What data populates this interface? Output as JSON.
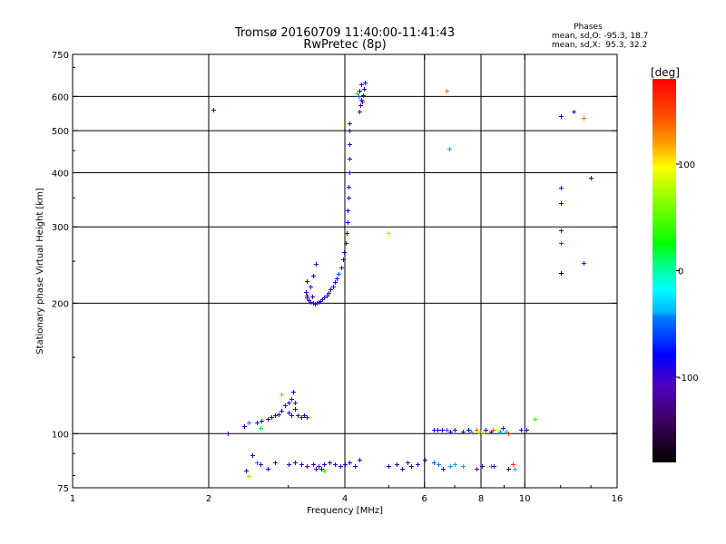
{
  "chart_data": {
    "type": "scatter",
    "title": "Tromsø 20160709 11:40:00-11:41:43",
    "subtitle": "RwPretec (8p)",
    "xlabel": "Frequency [MHz]",
    "ylabel": "Stationary phase Virtual Height [km]",
    "xscale": "log",
    "yscale": "log",
    "xlim": [
      1,
      16
    ],
    "ylim": [
      75,
      750
    ],
    "x_ticks": [
      1,
      2,
      4,
      6,
      8,
      10,
      16
    ],
    "x_tick_labels": [
      "1",
      "2",
      "4",
      "6",
      "8",
      "10",
      "16"
    ],
    "y_ticks": [
      75,
      100,
      200,
      300,
      400,
      500,
      600,
      750
    ],
    "y_tick_labels": [
      "75",
      "100",
      "200",
      "300",
      "400",
      "500",
      "600",
      "750"
    ],
    "x_grid": [
      2,
      4,
      6,
      8,
      10
    ],
    "y_grid": [
      100,
      200,
      300,
      400,
      500,
      600
    ],
    "stats": {
      "heading": "Phases",
      "o_line": "mean, sd,O: -95.3, 18.7",
      "x_line": "mean, sd,X:  95.3, 32.2"
    },
    "colorbar": {
      "label": "[deg]",
      "range": [
        -180,
        180
      ],
      "ticks": [
        100,
        0,
        -100
      ],
      "tick_labels": [
        "100",
        "0",
        "-100"
      ]
    },
    "point_fields": [
      "frequency_mhz",
      "height_km",
      "phase_deg"
    ],
    "points": [
      [
        2.05,
        560,
        -110
      ],
      [
        2.2,
        100,
        -120
      ],
      [
        3.28,
        212,
        -110
      ],
      [
        3.3,
        206,
        -110
      ],
      [
        3.33,
        203,
        -100
      ],
      [
        3.36,
        201,
        -120
      ],
      [
        3.4,
        200,
        -110
      ],
      [
        3.43,
        199,
        -110
      ],
      [
        3.46,
        200,
        -130
      ],
      [
        3.5,
        201,
        -110
      ],
      [
        3.53,
        202,
        -100
      ],
      [
        3.57,
        204,
        -110
      ],
      [
        3.6,
        206,
        -110
      ],
      [
        3.64,
        208,
        -110
      ],
      [
        3.68,
        211,
        -110
      ],
      [
        3.72,
        215,
        -100
      ],
      [
        3.76,
        219,
        -110
      ],
      [
        3.8,
        224,
        -110
      ],
      [
        3.84,
        228,
        -110
      ],
      [
        3.88,
        234,
        -80
      ],
      [
        3.92,
        242,
        -110
      ],
      [
        3.96,
        252,
        -110
      ],
      [
        3.99,
        262,
        -110
      ],
      [
        4.01,
        275,
        -110
      ],
      [
        4.03,
        290,
        -100
      ],
      [
        4.05,
        308,
        -110
      ],
      [
        4.06,
        328,
        -110
      ],
      [
        4.07,
        350,
        -110
      ],
      [
        4.08,
        372,
        -110
      ],
      [
        4.09,
        400,
        -110
      ],
      [
        4.09,
        430,
        -110
      ],
      [
        4.1,
        465,
        -110
      ],
      [
        4.1,
        500,
        -120
      ],
      [
        4.1,
        520,
        -110
      ],
      [
        3.3,
        225,
        -110
      ],
      [
        3.35,
        218,
        -120
      ],
      [
        3.4,
        232,
        -100
      ],
      [
        3.45,
        246,
        -110
      ],
      [
        3.3,
        208,
        -130
      ],
      [
        3.38,
        207,
        -110
      ],
      [
        4.3,
        555,
        -110
      ],
      [
        4.32,
        572,
        -120
      ],
      [
        4.35,
        590,
        -110
      ],
      [
        4.28,
        600,
        -80
      ],
      [
        4.38,
        605,
        -110
      ],
      [
        4.3,
        618,
        -110
      ],
      [
        4.4,
        625,
        -100
      ],
      [
        4.34,
        640,
        -110
      ],
      [
        4.42,
        645,
        -110
      ],
      [
        4.36,
        585,
        -130
      ],
      [
        4.25,
        610,
        20
      ],
      [
        2.4,
        104,
        -110
      ],
      [
        2.45,
        106,
        -70
      ],
      [
        2.55,
        106,
        -110
      ],
      [
        2.62,
        107,
        -110
      ],
      [
        2.7,
        108,
        -110
      ],
      [
        2.75,
        109,
        -110
      ],
      [
        2.8,
        110,
        -110
      ],
      [
        2.85,
        111,
        -110
      ],
      [
        2.9,
        113,
        -110
      ],
      [
        2.95,
        116,
        -130
      ],
      [
        3.0,
        118,
        -110
      ],
      [
        3.05,
        120,
        -110
      ],
      [
        3.0,
        112,
        -110
      ],
      [
        3.05,
        110,
        -110
      ],
      [
        3.1,
        114,
        -130
      ],
      [
        3.15,
        110,
        -110
      ],
      [
        3.2,
        109,
        -110
      ],
      [
        3.25,
        110,
        -110
      ],
      [
        3.3,
        109,
        -130
      ],
      [
        2.9,
        123,
        120
      ],
      [
        3.08,
        125,
        -100
      ],
      [
        3.1,
        118,
        -110
      ],
      [
        2.6,
        103,
        30
      ],
      [
        2.42,
        82,
        -110
      ],
      [
        2.45,
        80,
        60
      ],
      [
        2.5,
        89,
        -110
      ],
      [
        2.55,
        86,
        -70
      ],
      [
        2.6,
        85,
        -110
      ],
      [
        2.7,
        83,
        -100
      ],
      [
        2.8,
        86,
        -130
      ],
      [
        3.0,
        85,
        -110
      ],
      [
        3.1,
        86,
        -110
      ],
      [
        3.2,
        85,
        -110
      ],
      [
        3.3,
        84,
        -120
      ],
      [
        3.4,
        85,
        -110
      ],
      [
        3.5,
        84,
        -110
      ],
      [
        3.55,
        83,
        -110
      ],
      [
        3.6,
        85,
        -110
      ],
      [
        3.7,
        86,
        -110
      ],
      [
        3.8,
        85,
        -110
      ],
      [
        3.9,
        84,
        -110
      ],
      [
        4.0,
        85,
        -100
      ],
      [
        4.1,
        86,
        -110
      ],
      [
        4.2,
        84,
        -110
      ],
      [
        4.3,
        87,
        -110
      ],
      [
        3.6,
        82,
        40
      ],
      [
        3.45,
        83,
        -130
      ],
      [
        5.0,
        84,
        -110
      ],
      [
        5.2,
        85,
        -130
      ],
      [
        5.35,
        83,
        -110
      ],
      [
        5.5,
        86,
        -120
      ],
      [
        5.6,
        84,
        -140
      ],
      [
        5.8,
        85,
        -110
      ],
      [
        6.0,
        87,
        -130
      ],
      [
        6.3,
        86,
        -80
      ],
      [
        6.45,
        85,
        -70
      ],
      [
        6.6,
        83,
        -110
      ],
      [
        6.85,
        84,
        -60
      ],
      [
        7.0,
        85,
        -60
      ],
      [
        7.3,
        84,
        -60
      ],
      [
        7.8,
        83,
        -130
      ],
      [
        8.05,
        84,
        -110
      ],
      [
        8.4,
        84,
        160
      ],
      [
        8.55,
        84,
        -110
      ],
      [
        9.2,
        83,
        -140
      ],
      [
        9.5,
        83,
        -60
      ],
      [
        9.4,
        85,
        160
      ],
      [
        6.3,
        102,
        -110
      ],
      [
        6.4,
        102,
        -100
      ],
      [
        6.55,
        102,
        -110
      ],
      [
        6.7,
        102,
        -80
      ],
      [
        6.85,
        101,
        -110
      ],
      [
        7.0,
        102,
        -110
      ],
      [
        7.3,
        101,
        -110
      ],
      [
        7.5,
        102,
        -100
      ],
      [
        7.6,
        101,
        -60
      ],
      [
        7.8,
        102,
        150
      ],
      [
        7.9,
        101,
        80
      ],
      [
        8.0,
        101,
        60
      ],
      [
        8.1,
        101,
        100
      ],
      [
        8.2,
        102,
        -110
      ],
      [
        8.4,
        101,
        -110
      ],
      [
        8.5,
        102,
        160
      ],
      [
        8.7,
        102,
        100
      ],
      [
        8.8,
        101,
        -60
      ],
      [
        8.95,
        103,
        -110
      ],
      [
        9.1,
        101,
        -60
      ],
      [
        9.2,
        100,
        160
      ],
      [
        9.8,
        102,
        -130
      ],
      [
        10.1,
        102,
        -110
      ],
      [
        10.5,
        108,
        40
      ],
      [
        5.0,
        290,
        110
      ],
      [
        6.7,
        620,
        140
      ],
      [
        6.8,
        455,
        -60
      ],
      [
        12.0,
        540,
        -110
      ],
      [
        12.8,
        555,
        -110
      ],
      [
        13.5,
        535,
        140
      ],
      [
        14.0,
        390,
        -110
      ],
      [
        12.0,
        370,
        -110
      ],
      [
        12.0,
        340,
        -110
      ],
      [
        12.0,
        295,
        -130
      ],
      [
        12.0,
        275,
        175
      ],
      [
        12.0,
        235,
        -175
      ],
      [
        13.5,
        248,
        -90
      ]
    ]
  }
}
